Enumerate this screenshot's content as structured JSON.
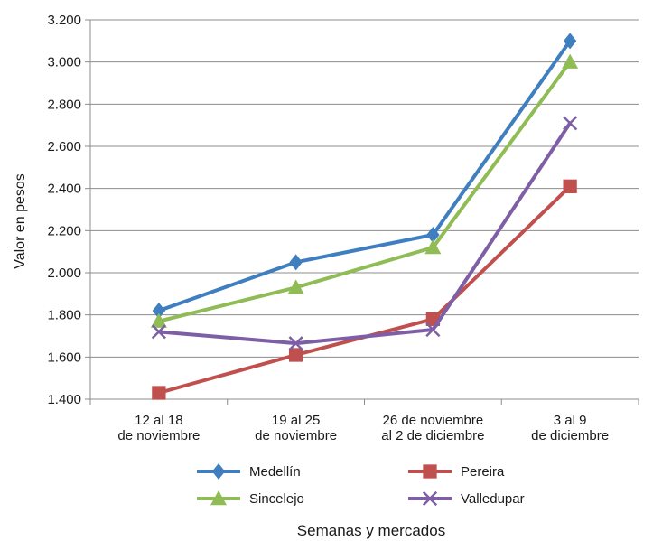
{
  "chart_data": {
    "type": "line",
    "title": "",
    "xlabel": "Semanas y mercados",
    "ylabel": "Valor en pesos",
    "ylim": [
      1400,
      3200
    ],
    "y_ticks": [
      "1.400",
      "1.600",
      "1.800",
      "2.000",
      "2.200",
      "2.400",
      "2.600",
      "2.800",
      "3.000",
      "3.200"
    ],
    "y_tick_values": [
      1400,
      1600,
      1800,
      2000,
      2200,
      2400,
      2600,
      2800,
      3000,
      3200
    ],
    "categories": [
      [
        "12 al 18",
        "de noviembre"
      ],
      [
        "19 al 25",
        "de noviembre"
      ],
      [
        "26 de noviembre",
        "al 2 de diciembre"
      ],
      [
        "3 al 9",
        "de diciembre"
      ]
    ],
    "grid": "horizontal",
    "legend_position": "bottom",
    "series": [
      {
        "name": "Medellín",
        "color": "#3f7fc0",
        "marker": "diamond",
        "values": [
          1820,
          2050,
          2180,
          3100
        ]
      },
      {
        "name": "Pereira",
        "color": "#c0504d",
        "marker": "square",
        "values": [
          1430,
          1610,
          1780,
          2410
        ]
      },
      {
        "name": "Sincelejo",
        "color": "#8fbc55",
        "marker": "triangle",
        "values": [
          1770,
          1930,
          2120,
          3000
        ]
      },
      {
        "name": "Valledupar",
        "color": "#7e5fa6",
        "marker": "x",
        "values": [
          1720,
          1665,
          1730,
          2710
        ]
      }
    ]
  }
}
